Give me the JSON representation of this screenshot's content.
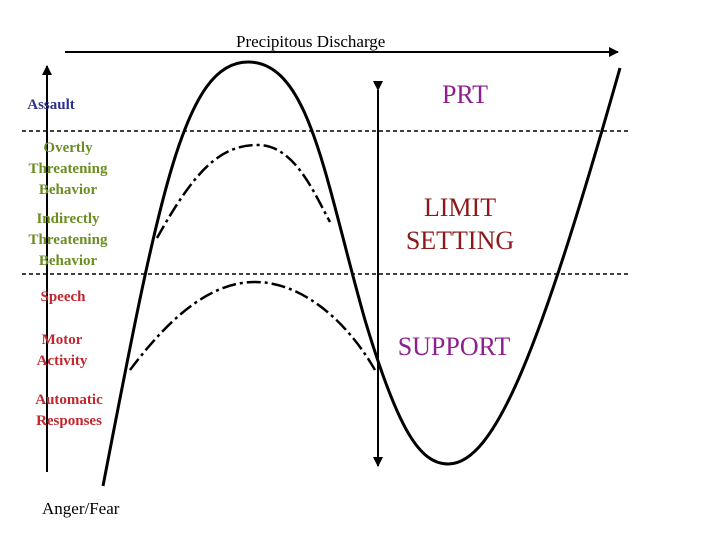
{
  "diagram": {
    "top_label": "Precipitous Discharge",
    "bottom_label": "Anger/Fear",
    "left_levels": [
      {
        "text": "Assault",
        "color": "#2E3192"
      },
      {
        "text": "Overtly\nThreatening\nBehavior",
        "color": "#6B8E23"
      },
      {
        "text": "Indirectly\nThreatening\nBehavior",
        "color": "#6B8E23"
      },
      {
        "text": "Speech",
        "color": "#C1272D"
      },
      {
        "text": "Motor\nActivity",
        "color": "#C1272D"
      },
      {
        "text": "Automatic\nResponses",
        "color": "#C1272D"
      }
    ],
    "responses": [
      {
        "text": "PRT",
        "color": "#8E1F8E"
      },
      {
        "text": "LIMIT\nSETTING",
        "color": "#8B1A1A"
      },
      {
        "text": "SUPPORT",
        "color": "#8E1F8E"
      }
    ]
  }
}
